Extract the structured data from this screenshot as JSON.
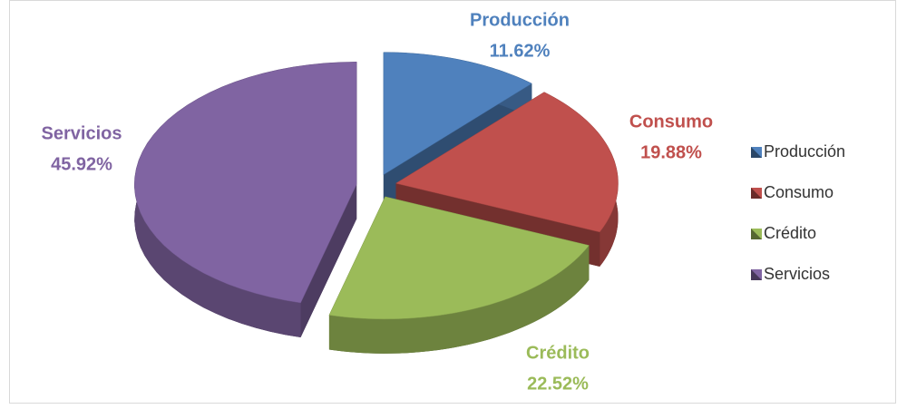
{
  "chart_data": {
    "type": "pie",
    "categories": [
      "Producción",
      "Consumo",
      "Crédito",
      "Servicios"
    ],
    "values": [
      11.62,
      19.88,
      22.52,
      45.92
    ],
    "value_labels": [
      "11.62%",
      "19.88%",
      "22.52%",
      "45.92%"
    ],
    "colors": [
      "#4f81bd",
      "#c0504d",
      "#9bbb59",
      "#8064a2"
    ],
    "label_colors": [
      "#4f81bd",
      "#c0504d",
      "#9bbb59",
      "#8064a2"
    ],
    "legend": "right"
  }
}
